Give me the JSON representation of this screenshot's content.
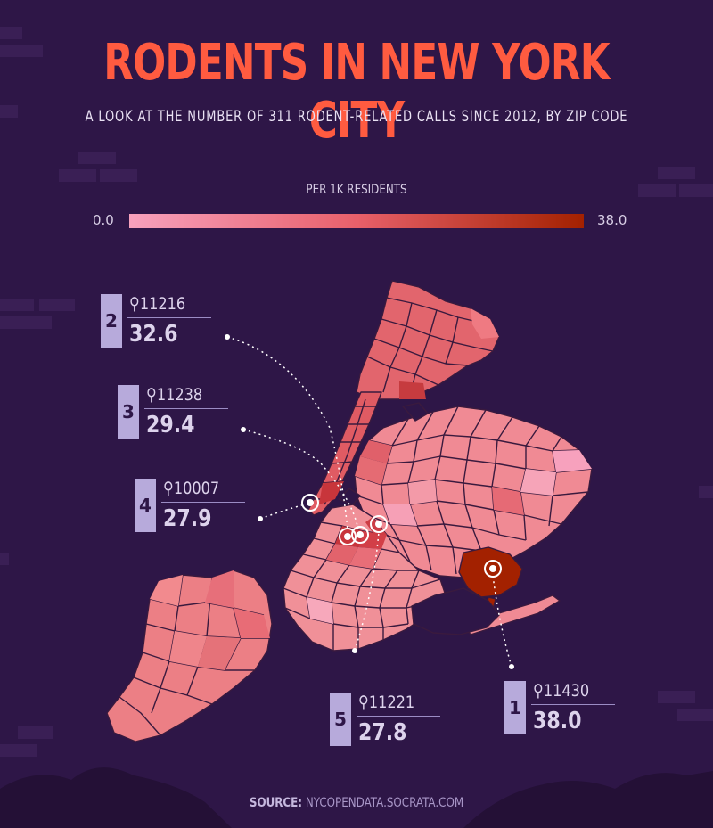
{
  "title": "RODENTS IN NEW YORK CITY",
  "subtitle": "A LOOK AT THE NUMBER OF 311 RODENT-RELATED CALLS SINCE 2012, BY ZIP CODE",
  "legend": {
    "title": "PER 1K RESIDENTS",
    "min": "0.0",
    "max": "38.0",
    "color_low": "#f7a1bd",
    "color_high": "#a32100"
  },
  "callouts": [
    {
      "rank": "2",
      "zip": "11216",
      "value": "32.6"
    },
    {
      "rank": "3",
      "zip": "11238",
      "value": "29.4"
    },
    {
      "rank": "4",
      "zip": "10007",
      "value": "27.9"
    },
    {
      "rank": "5",
      "zip": "11221",
      "value": "27.8"
    },
    {
      "rank": "1",
      "zip": "11430",
      "value": "38.0"
    }
  ],
  "source": {
    "label": "SOURCE:",
    "text": "NYCOPENDATA.SOCRATA.COM"
  },
  "colors": {
    "background": "#2e1647",
    "title": "#ff5b40",
    "callout_box": "#b7aadb"
  }
}
